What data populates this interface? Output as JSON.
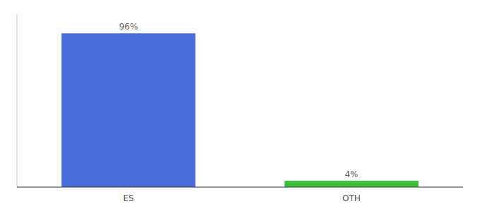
{
  "chart_data": {
    "type": "bar",
    "categories": [
      "ES",
      "OTH"
    ],
    "values": [
      96,
      4
    ],
    "value_labels": [
      "96%",
      "4%"
    ],
    "colors": [
      "#4a6edb",
      "#3dbf3d"
    ],
    "ylim": [
      0,
      108
    ],
    "data_labels": true,
    "tick_labels": "x",
    "grid": false
  }
}
